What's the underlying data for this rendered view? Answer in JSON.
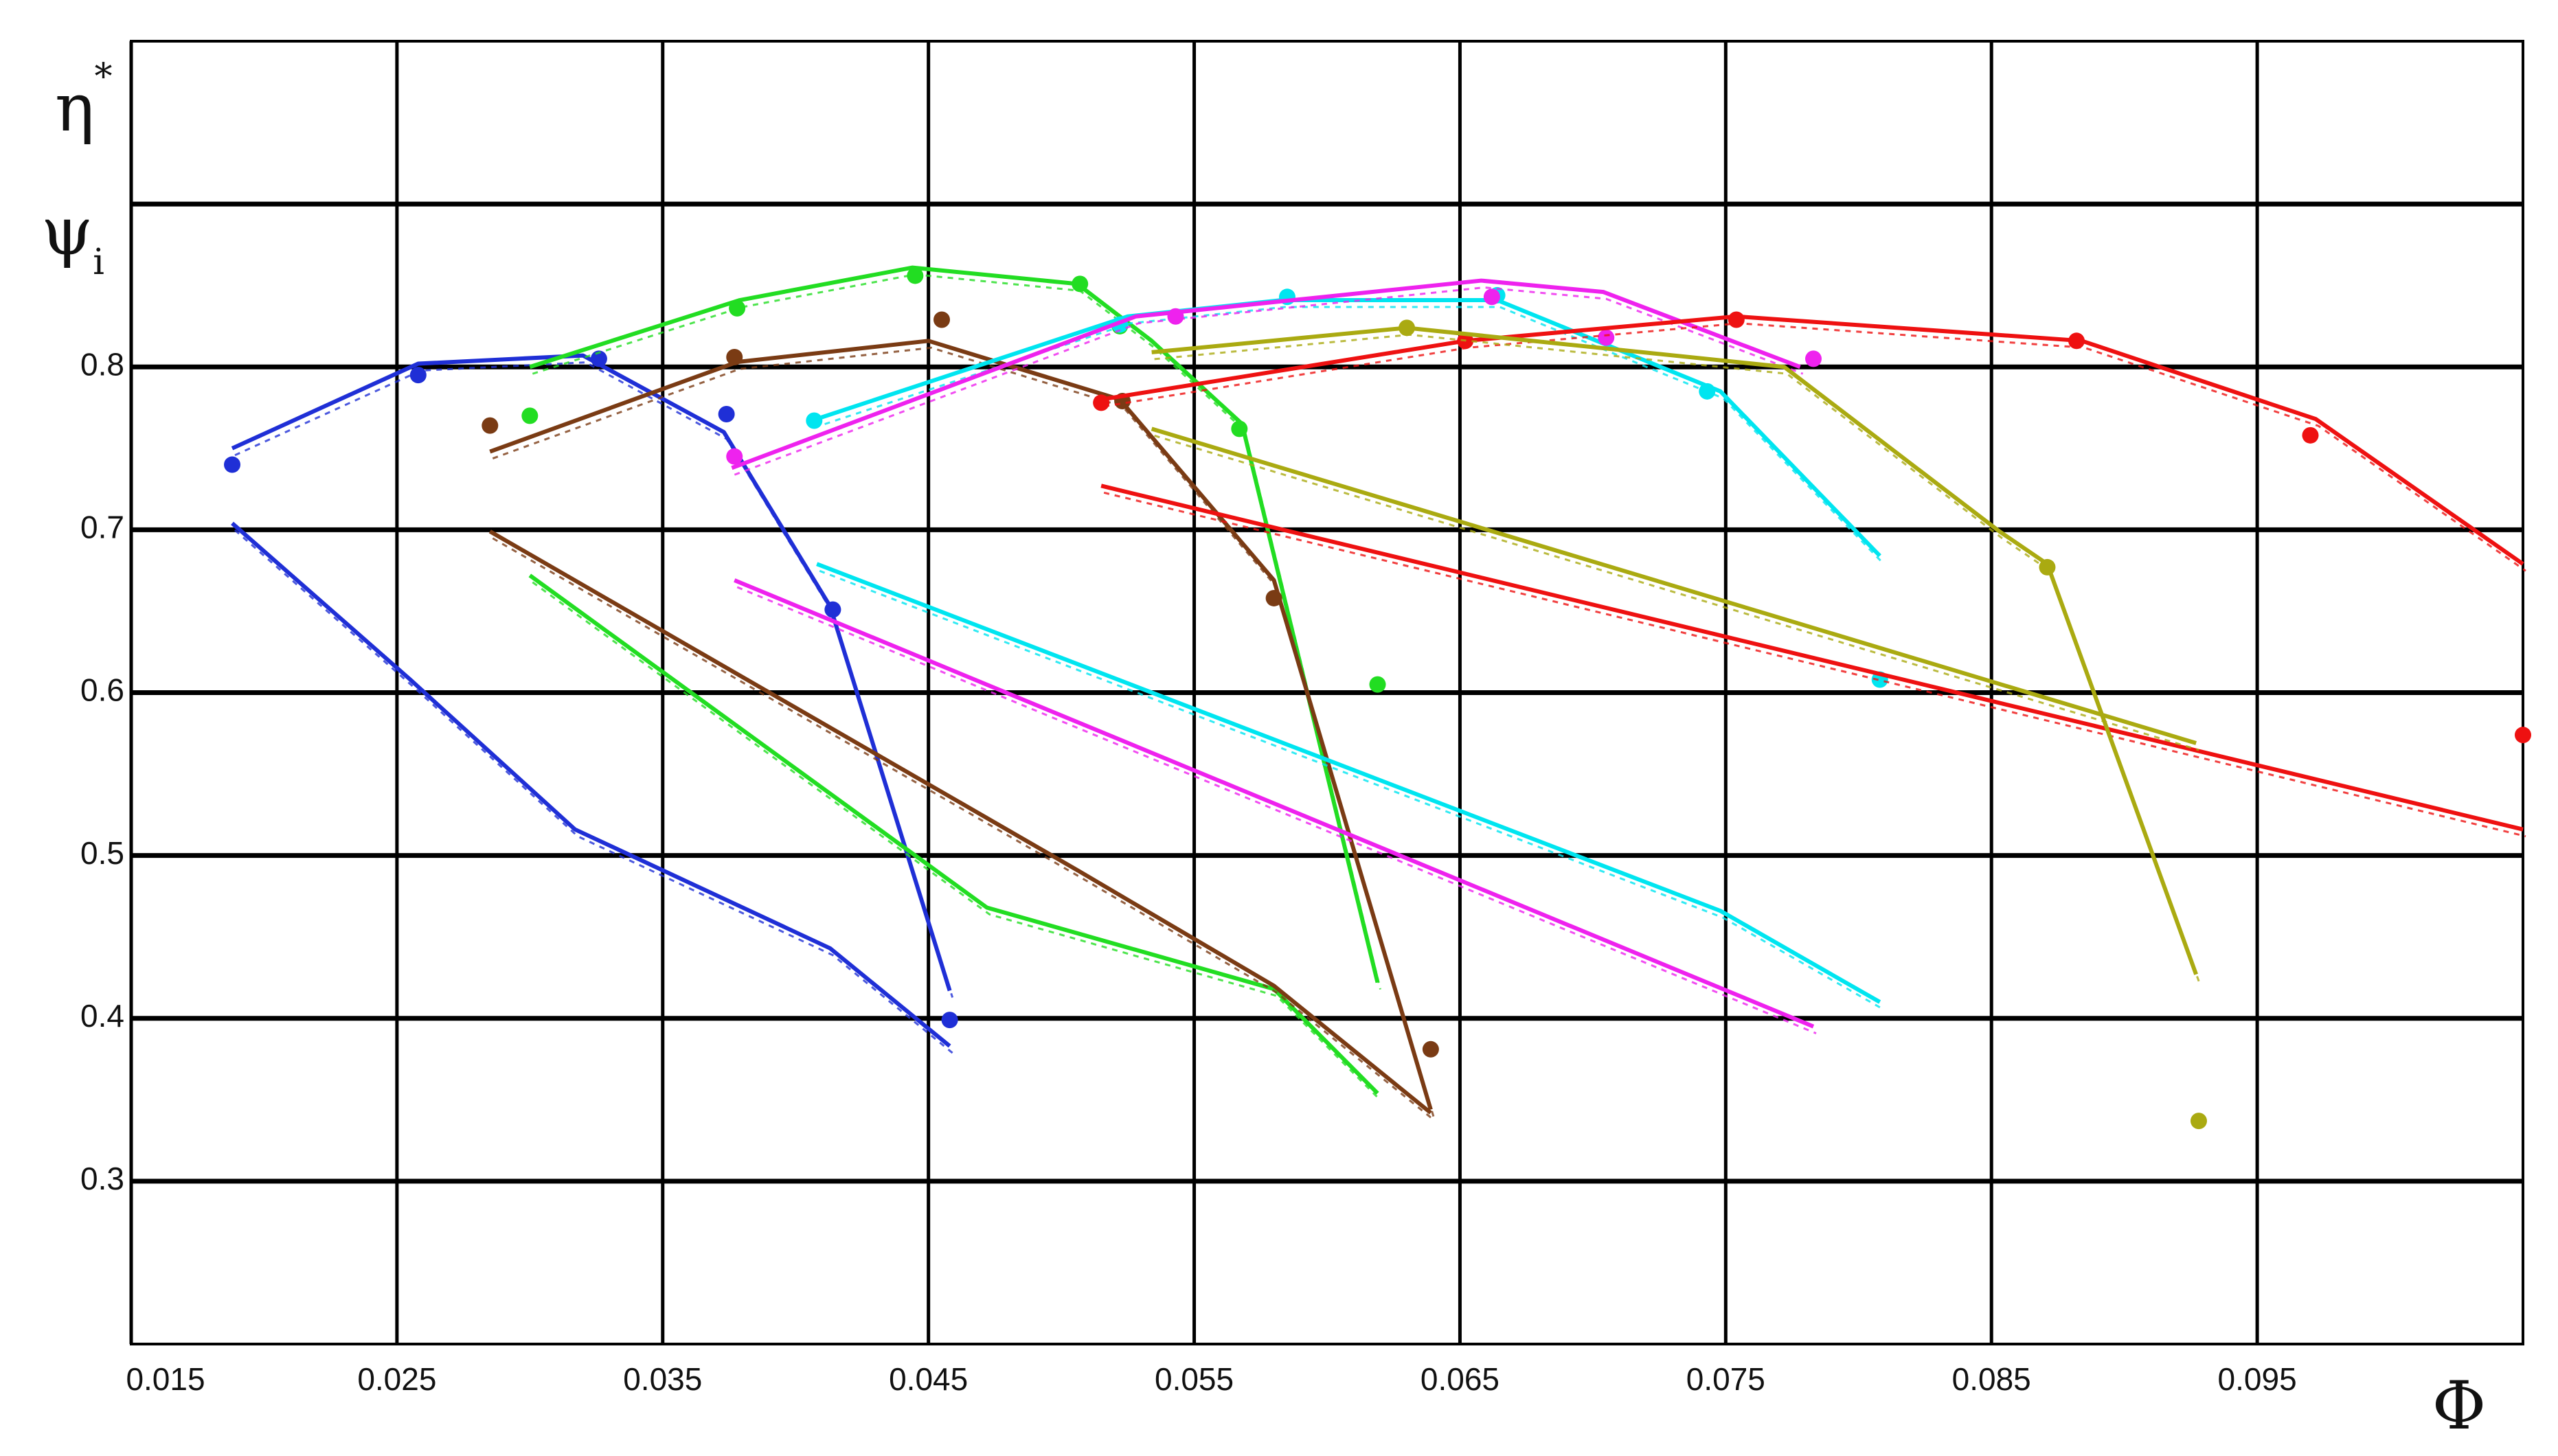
{
  "chart_data": {
    "type": "line",
    "y_labels": [
      {
        "base": "η",
        "sup": "*"
      },
      {
        "base": "ψ",
        "sub": "i"
      }
    ],
    "x_label": "Φ",
    "xlim": [
      0.015,
      0.105
    ],
    "ylim": [
      0.2,
      1.0
    ],
    "xticks": [
      0.015,
      0.025,
      0.035,
      0.045,
      0.055,
      0.065,
      0.075,
      0.085,
      0.095
    ],
    "yticks": [
      0.3,
      0.4,
      0.5,
      0.6,
      0.7,
      0.8
    ],
    "ygrid": [
      0.3,
      0.4,
      0.5,
      0.6,
      0.7,
      0.8,
      0.9
    ],
    "grid": true,
    "series": [
      {
        "color": "#1f2fd6",
        "style": "line",
        "x": [
          0.0188,
          0.0258,
          0.032,
          0.0373,
          0.0413,
          0.0458
        ],
        "values": [
          0.75,
          0.802,
          0.807,
          0.76,
          0.653,
          0.417
        ]
      },
      {
        "color": "#1f2fd6",
        "style": "points",
        "x": [
          0.0188,
          0.0258,
          0.0326,
          0.0374,
          0.0414,
          0.0458
        ],
        "values": [
          0.74,
          0.795,
          0.805,
          0.771,
          0.651,
          0.399
        ]
      },
      {
        "color": "#1f2fd6",
        "style": "line",
        "x": [
          0.0188,
          0.0255,
          0.0317,
          0.0413,
          0.0458
        ],
        "values": [
          0.704,
          0.608,
          0.516,
          0.443,
          0.383
        ]
      },
      {
        "color": "#22dd22",
        "style": "line",
        "x": [
          0.03,
          0.0379,
          0.0444,
          0.0506,
          0.0534,
          0.0568,
          0.0619
        ],
        "values": [
          0.8,
          0.841,
          0.861,
          0.851,
          0.816,
          0.765,
          0.422
        ]
      },
      {
        "color": "#22dd22",
        "style": "points",
        "x": [
          0.03,
          0.0378,
          0.0445,
          0.0507,
          0.0522,
          0.0567,
          0.0619
        ],
        "values": [
          0.77,
          0.836,
          0.856,
          0.851,
          0.825,
          0.762,
          0.605
        ]
      },
      {
        "color": "#22dd22",
        "style": "line",
        "x": [
          0.03,
          0.0472,
          0.058,
          0.0619
        ],
        "values": [
          0.672,
          0.468,
          0.418,
          0.354
        ]
      },
      {
        "color": "#7a3b14",
        "style": "line",
        "x": [
          0.0285,
          0.0378,
          0.045,
          0.0522,
          0.058,
          0.0639
        ],
        "values": [
          0.748,
          0.803,
          0.816,
          0.78,
          0.669,
          0.344
        ]
      },
      {
        "color": "#7a3b14",
        "style": "points",
        "x": [
          0.0285,
          0.0377,
          0.0455,
          0.0523,
          0.058,
          0.0639
        ],
        "values": [
          0.764,
          0.806,
          0.829,
          0.779,
          0.658,
          0.381
        ]
      },
      {
        "color": "#7a3b14",
        "style": "line",
        "x": [
          0.0285,
          0.0506,
          0.058,
          0.0639
        ],
        "values": [
          0.699,
          0.491,
          0.42,
          0.342
        ]
      },
      {
        "color": "#00e5f0",
        "style": "line",
        "x": [
          0.0406,
          0.0525,
          0.0583,
          0.0664,
          0.0748,
          0.0808
        ],
        "values": [
          0.767,
          0.831,
          0.841,
          0.841,
          0.785,
          0.684
        ]
      },
      {
        "color": "#00e5f0",
        "style": "points",
        "x": [
          0.0407,
          0.0522,
          0.0585,
          0.0664,
          0.0743,
          0.0808
        ],
        "values": [
          0.767,
          0.826,
          0.843,
          0.844,
          0.785,
          0.608
        ]
      },
      {
        "color": "#00e5f0",
        "style": "line",
        "x": [
          0.0408,
          0.0748,
          0.0808
        ],
        "values": [
          0.679,
          0.466,
          0.41
        ]
      },
      {
        "color": "#ee22ee",
        "style": "line",
        "x": [
          0.0376,
          0.0528,
          0.0658,
          0.0704,
          0.0778
        ],
        "values": [
          0.738,
          0.831,
          0.853,
          0.846,
          0.8
        ]
      },
      {
        "color": "#ee22ee",
        "style": "points",
        "x": [
          0.0377,
          0.0543,
          0.0662,
          0.0705,
          0.0783
        ],
        "values": [
          0.745,
          0.831,
          0.843,
          0.818,
          0.805
        ]
      },
      {
        "color": "#ee22ee",
        "style": "line",
        "x": [
          0.0377,
          0.0783
        ],
        "values": [
          0.669,
          0.395
        ]
      },
      {
        "color": "#ee1111",
        "style": "line",
        "x": [
          0.0515,
          0.0652,
          0.0754,
          0.0884,
          0.0972,
          0.105
        ],
        "values": [
          0.78,
          0.816,
          0.831,
          0.816,
          0.768,
          0.679
        ]
      },
      {
        "color": "#ee1111",
        "style": "points",
        "x": [
          0.0515,
          0.0652,
          0.0754,
          0.0882,
          0.097,
          0.105
        ],
        "values": [
          0.778,
          0.816,
          0.829,
          0.816,
          0.758,
          0.574
        ]
      },
      {
        "color": "#ee1111",
        "style": "line",
        "x": [
          0.0515,
          0.105
        ],
        "values": [
          0.727,
          0.516
        ]
      },
      {
        "color": "#aaaa11",
        "style": "line",
        "x": [
          0.0534,
          0.063,
          0.0772,
          0.0853,
          0.0871,
          0.0927
        ],
        "values": [
          0.809,
          0.824,
          0.8,
          0.699,
          0.679,
          0.427
        ]
      },
      {
        "color": "#aaaa11",
        "style": "points",
        "x": [
          0.063,
          0.0871,
          0.0928
        ],
        "values": [
          0.824,
          0.677,
          0.337
        ]
      },
      {
        "color": "#aaaa11",
        "style": "line",
        "x": [
          0.0534,
          0.0927
        ],
        "values": [
          0.762,
          0.569
        ]
      }
    ]
  }
}
